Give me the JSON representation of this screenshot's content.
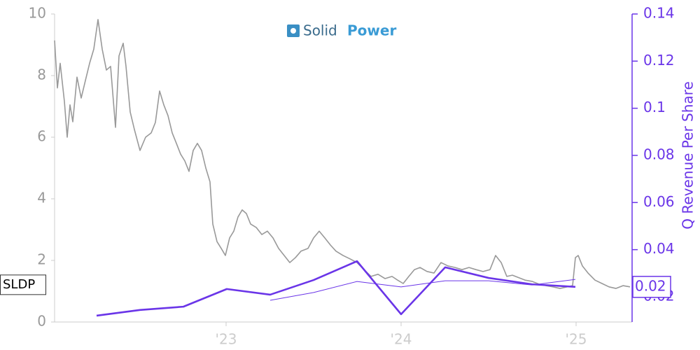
{
  "chart_data": {
    "type": "line",
    "logo": [
      "Solid",
      "Power"
    ],
    "y2_label": "Q Revenue Per Share",
    "xlim": [
      2022.02,
      2025.32
    ],
    "xticks": [
      {
        "value": 2023,
        "label": "'23"
      },
      {
        "value": 2024,
        "label": "'24"
      },
      {
        "value": 2025,
        "label": "'25"
      }
    ],
    "ylim": [
      0,
      10
    ],
    "yticks": [
      0,
      2,
      4,
      6,
      8,
      10
    ],
    "y2lim": [
      0.0093,
      0.14
    ],
    "y2ticks": [
      0.02,
      0.04,
      0.06,
      0.08,
      0.1,
      0.12,
      0.14
    ],
    "current_label": {
      "value": 0.0242,
      "label": "0.02"
    },
    "series": [
      {
        "name": "SLDP",
        "color": "#999999",
        "width": 1.6,
        "x": [
          2022.02,
          2022.036,
          2022.052,
          2022.076,
          2022.092,
          2022.108,
          2022.124,
          2022.148,
          2022.172,
          2022.196,
          2022.22,
          2022.244,
          2022.268,
          2022.292,
          2022.316,
          2022.34,
          2022.368,
          2022.388,
          2022.412,
          2022.428,
          2022.452,
          2022.476,
          2022.508,
          2022.54,
          2022.572,
          2022.596,
          2022.62,
          2022.644,
          2022.668,
          2022.692,
          2022.716,
          2022.74,
          2022.764,
          2022.788,
          2022.812,
          2022.836,
          2022.86,
          2022.884,
          2022.908,
          2022.924,
          2022.948,
          2022.972,
          2022.996,
          2023.02,
          2023.044,
          2023.068,
          2023.092,
          2023.116,
          2023.14,
          2023.172,
          2023.204,
          2023.236,
          2023.268,
          2023.3,
          2023.332,
          2023.364,
          2023.396,
          2023.428,
          2023.468,
          2023.5,
          2023.532,
          2023.564,
          2023.596,
          2023.628,
          2023.668,
          2023.708,
          2023.748,
          2023.788,
          2023.828,
          2023.868,
          2023.908,
          2023.948,
          2023.98,
          2024.012,
          2024.044,
          2024.076,
          2024.108,
          2024.148,
          2024.188,
          2024.228,
          2024.268,
          2024.308,
          2024.348,
          2024.388,
          2024.428,
          2024.468,
          2024.508,
          2024.54,
          2024.572,
          2024.604,
          2024.636,
          2024.668,
          2024.708,
          2024.748,
          2024.788,
          2024.828,
          2024.868,
          2024.908,
          2024.948,
          2024.98,
          2024.996,
          2025.012,
          2025.036,
          2025.068,
          2025.108,
          2025.148,
          2025.188,
          2025.228,
          2025.268,
          2025.308
        ],
        "values": [
          9.14,
          7.6,
          8.4,
          7.16,
          6.0,
          7.05,
          6.5,
          7.95,
          7.27,
          7.84,
          8.4,
          8.86,
          9.82,
          8.86,
          8.18,
          8.3,
          6.32,
          8.64,
          9.05,
          8.3,
          6.82,
          6.25,
          5.57,
          6.0,
          6.14,
          6.48,
          7.5,
          7.05,
          6.7,
          6.14,
          5.8,
          5.45,
          5.23,
          4.89,
          5.57,
          5.8,
          5.57,
          5.0,
          4.55,
          3.18,
          2.61,
          2.39,
          2.16,
          2.73,
          2.95,
          3.41,
          3.64,
          3.52,
          3.18,
          3.07,
          2.84,
          2.95,
          2.73,
          2.39,
          2.16,
          1.93,
          2.09,
          2.3,
          2.39,
          2.73,
          2.95,
          2.73,
          2.5,
          2.3,
          2.16,
          2.05,
          1.93,
          1.7,
          1.48,
          1.55,
          1.41,
          1.48,
          1.36,
          1.25,
          1.48,
          1.7,
          1.77,
          1.64,
          1.59,
          1.93,
          1.82,
          1.77,
          1.7,
          1.77,
          1.7,
          1.64,
          1.7,
          2.16,
          1.93,
          1.48,
          1.52,
          1.45,
          1.36,
          1.32,
          1.23,
          1.18,
          1.14,
          1.09,
          1.14,
          1.18,
          2.09,
          2.16,
          1.82,
          1.59,
          1.36,
          1.25,
          1.14,
          1.09,
          1.18,
          1.14
        ]
      },
      {
        "color": "#6a35e8",
        "axis": "y2",
        "width": 2.6,
        "x": [
          2022.26,
          2022.508,
          2022.756,
          2023.004,
          2023.252,
          2023.5,
          2023.748,
          2024.0,
          2024.252,
          2024.5,
          2024.748,
          2024.996
        ],
        "values": [
          0.012,
          0.0144,
          0.0158,
          0.0233,
          0.0209,
          0.0271,
          0.0351,
          0.0126,
          0.0325,
          0.028,
          0.0253,
          0.0242
        ]
      },
      {
        "color": "#6a35e8",
        "axis": "y2",
        "width": 1,
        "x": [
          2022.26,
          2022.508,
          2022.756,
          2023.004,
          2023.252,
          2023.5,
          2023.748,
          2024.0,
          2024.252,
          2024.5,
          2024.748,
          2024.996
        ],
        "values": [
          null,
          null,
          null,
          null,
          0.0185,
          0.0218,
          0.0265,
          0.0242,
          0.0268,
          0.0268,
          0.025,
          0.0274
        ]
      }
    ]
  }
}
